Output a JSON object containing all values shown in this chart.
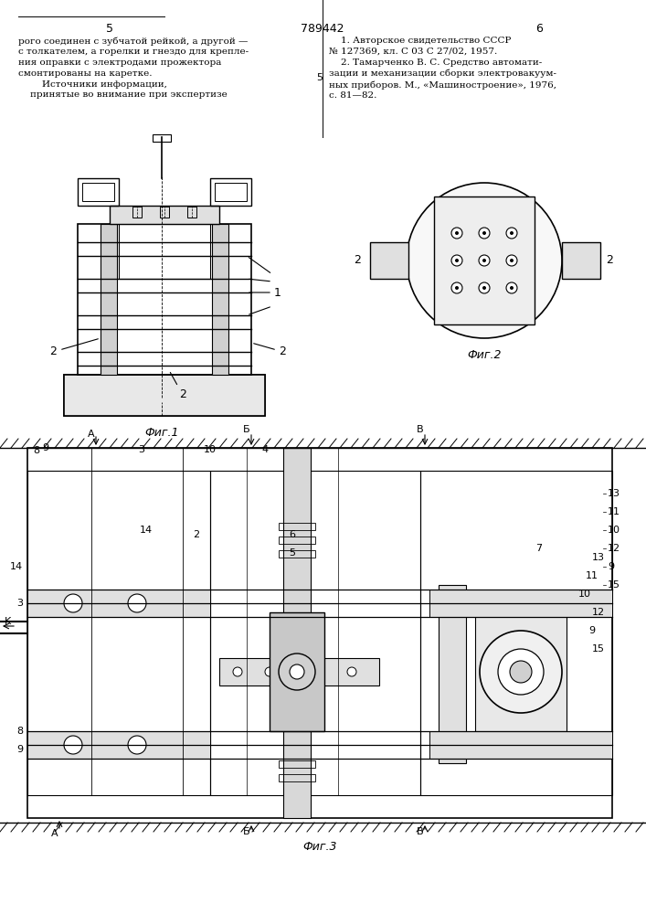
{
  "page_number_left": "5",
  "page_number_center": "789442",
  "page_number_right": "6",
  "text_left": "рого соединен с зубчатой рейкой, а другой —\nс толкателем, а горелки и гнездо для крепления оправки с электродами прожектора\nсмонтированы на каретке.\n    Источники информации,\n    принятые во внимание при экспертизе",
  "text_right": "    1. Авторское свидетельство СССР\n№ 127369, кл. С 03 С 27/02, 1957.\n    2. Тамарченко В. С. Средство автоматизации и механизации сборки электровакуумных приборов. М., «Машиностроение», 1976,\nс. 81—82.",
  "fig1_caption": "Фиг.1",
  "fig2_caption": "Фиг.2",
  "fig3_caption": "Фиг.3",
  "bg_color": "#ffffff",
  "line_color": "#000000",
  "fig1_label1": "1",
  "fig1_label2": "2",
  "fig2_label2": "2",
  "fig3_labels": [
    "3",
    "10",
    "4",
    "9",
    "8",
    "14",
    "2",
    "6",
    "5",
    "13",
    "11",
    "10",
    "12",
    "9",
    "15",
    "7",
    "K",
    "A",
    "Б",
    "B"
  ],
  "hatch_color": "#000000"
}
